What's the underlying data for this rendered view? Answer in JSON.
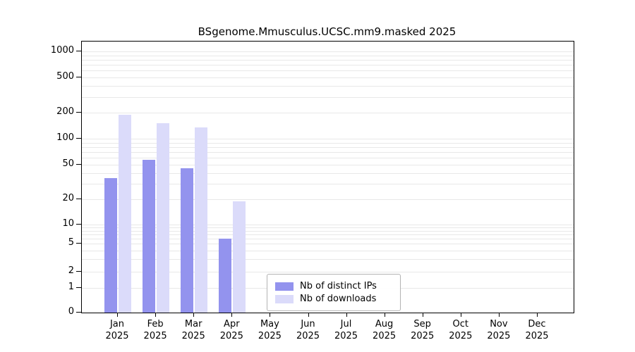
{
  "chart_data": {
    "type": "bar",
    "title": "BSgenome.Mmusculus.UCSC.mm9.masked 2025",
    "year": "2025",
    "categories": [
      "Jan",
      "Feb",
      "Mar",
      "Apr",
      "May",
      "Jun",
      "Jul",
      "Aug",
      "Sep",
      "Oct",
      "Nov",
      "Dec"
    ],
    "series": [
      {
        "name": "Nb of distinct IPs",
        "color": "#9393ee",
        "values": [
          35,
          57,
          46,
          6,
          0,
          0,
          0,
          0,
          0,
          0,
          0,
          0
        ]
      },
      {
        "name": "Nb of downloads",
        "color": "#dbdbfa",
        "values": [
          190,
          150,
          135,
          19,
          0,
          0,
          0,
          0,
          0,
          0,
          0,
          0
        ]
      }
    ],
    "y_ticks": [
      0,
      1,
      2,
      5,
      10,
      20,
      50,
      100,
      200,
      500,
      1000
    ],
    "y_axis_type": "log",
    "ylim": [
      0,
      1000
    ],
    "xlabel": "",
    "ylabel": "",
    "grid": "horizontal-minor",
    "legend_position": "bottom-center-inside"
  }
}
